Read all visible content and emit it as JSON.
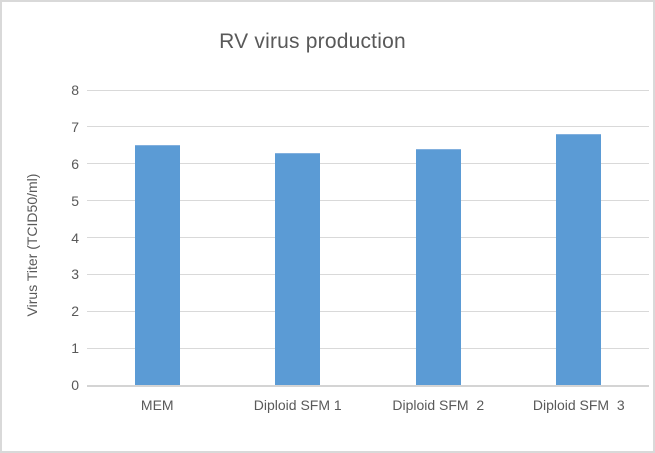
{
  "chart_data": {
    "type": "bar",
    "title": "RV virus production",
    "xlabel": "",
    "ylabel": "Virus Titer (TCID50/ml)",
    "categories": [
      "MEM",
      "Diploid SFM 1",
      "Diploid SFM  2",
      "Diploid SFM  3"
    ],
    "values": [
      6.5,
      6.3,
      6.4,
      6.8
    ],
    "ylim": [
      0,
      8
    ],
    "ytick_step": 1,
    "yticks": [
      0,
      1,
      2,
      3,
      4,
      5,
      6,
      7,
      8
    ],
    "grid": true,
    "legend": "none",
    "colors": {
      "bar": "#5b9bd5",
      "text": "#595959",
      "gridline": "#d9d9d9",
      "axis_line": "#d4d4d4",
      "frame_border": "#d9d9d9",
      "background": "#ffffff"
    }
  }
}
